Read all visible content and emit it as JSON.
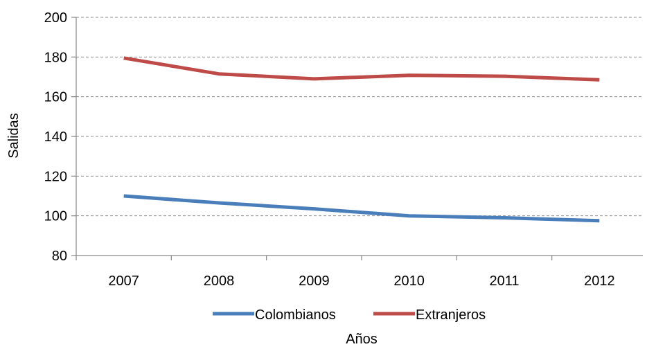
{
  "chart_data": {
    "type": "line",
    "title": "",
    "xlabel": "Años",
    "ylabel": "Salidas",
    "categories": [
      "2007",
      "2008",
      "2009",
      "2010",
      "2011",
      "2012"
    ],
    "ylim": [
      80,
      200
    ],
    "yticks": [
      80,
      100,
      120,
      140,
      160,
      180,
      200
    ],
    "grid": true,
    "legend_position": "bottom",
    "series": [
      {
        "name": "Colombianos",
        "color": "#4a7ebb",
        "values": [
          110,
          106.5,
          103.5,
          100,
          99,
          97.5
        ]
      },
      {
        "name": "Extranjeros",
        "color": "#be4b48",
        "values": [
          179.5,
          171.5,
          169,
          170.8,
          170.3,
          168.5
        ]
      }
    ]
  }
}
